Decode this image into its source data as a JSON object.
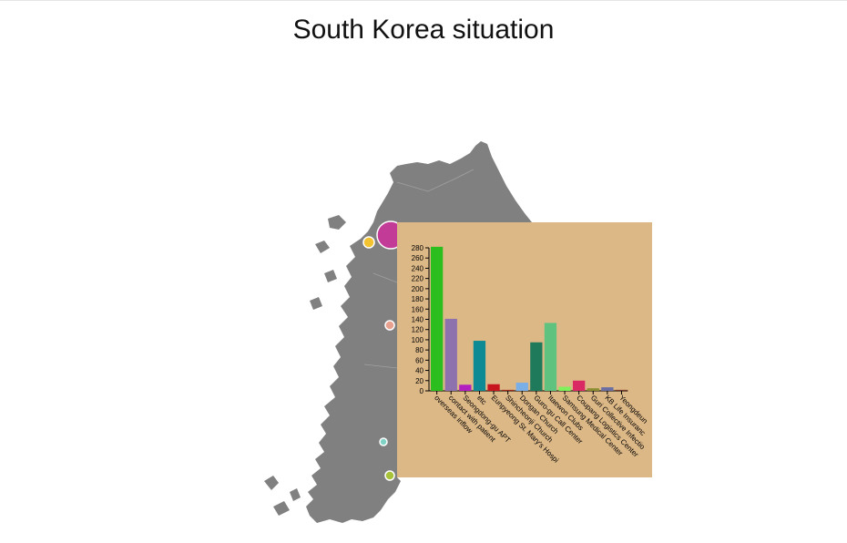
{
  "title": "South Korea situation",
  "map": {
    "land_color": "#808080",
    "markers": [
      {
        "name": "marker-seoul",
        "color": "#c13b97"
      },
      {
        "name": "marker-incheon",
        "color": "#f2c230"
      },
      {
        "name": "marker-sejong",
        "color": "#e8a18f"
      },
      {
        "name": "marker-gwangju",
        "color": "#7fd3c4"
      },
      {
        "name": "marker-busan",
        "color": "#a8c23a"
      }
    ]
  },
  "chart_data": {
    "type": "bar",
    "title": "",
    "xlabel": "",
    "ylabel": "",
    "ylim": [
      0,
      280
    ],
    "yticks": [
      0,
      20,
      40,
      60,
      80,
      100,
      120,
      140,
      160,
      180,
      200,
      220,
      240,
      260,
      280
    ],
    "categories": [
      "overseas inflow",
      "contact with patient",
      "Seongdong-gu APT",
      "etc",
      "Eunpyeong St. Mary's Hospital",
      "Shincheonji Church",
      "Dongan Church",
      "Guro-gu Call Center",
      "Itaewon Clubs",
      "Samsung Medical Center",
      "Coupang Logistics Center",
      "Guri Collective Infection",
      "KB Life Insurance",
      "Yeongdeungpo"
    ],
    "tick_labels": [
      "overseas inflow",
      "contact with patient",
      "Seongdong-gu APT",
      "etc",
      "Eunpyeong St. Mary's Hospi",
      "Shincheonji Church",
      "Dongan Church",
      "Guro-gu Call Center",
      "Itaewon Clubs",
      "Samsung Medical Center",
      "Coupang Logistics Center",
      "Guri Collective Infectio",
      "KB Life Insuranc",
      "Yeongdeun"
    ],
    "values": [
      282,
      141,
      12,
      98,
      13,
      2,
      16,
      95,
      133,
      8,
      20,
      5,
      7,
      2
    ],
    "colors": [
      "#2cbd1e",
      "#8d72ad",
      "#b21fc1",
      "#0d8a94",
      "#c8161e",
      "#a0291a",
      "#7aaee6",
      "#1f7a5c",
      "#5fc27f",
      "#7df25a",
      "#d92a64",
      "#8a8d30",
      "#6b6ea3",
      "#7a3a2a"
    ]
  }
}
